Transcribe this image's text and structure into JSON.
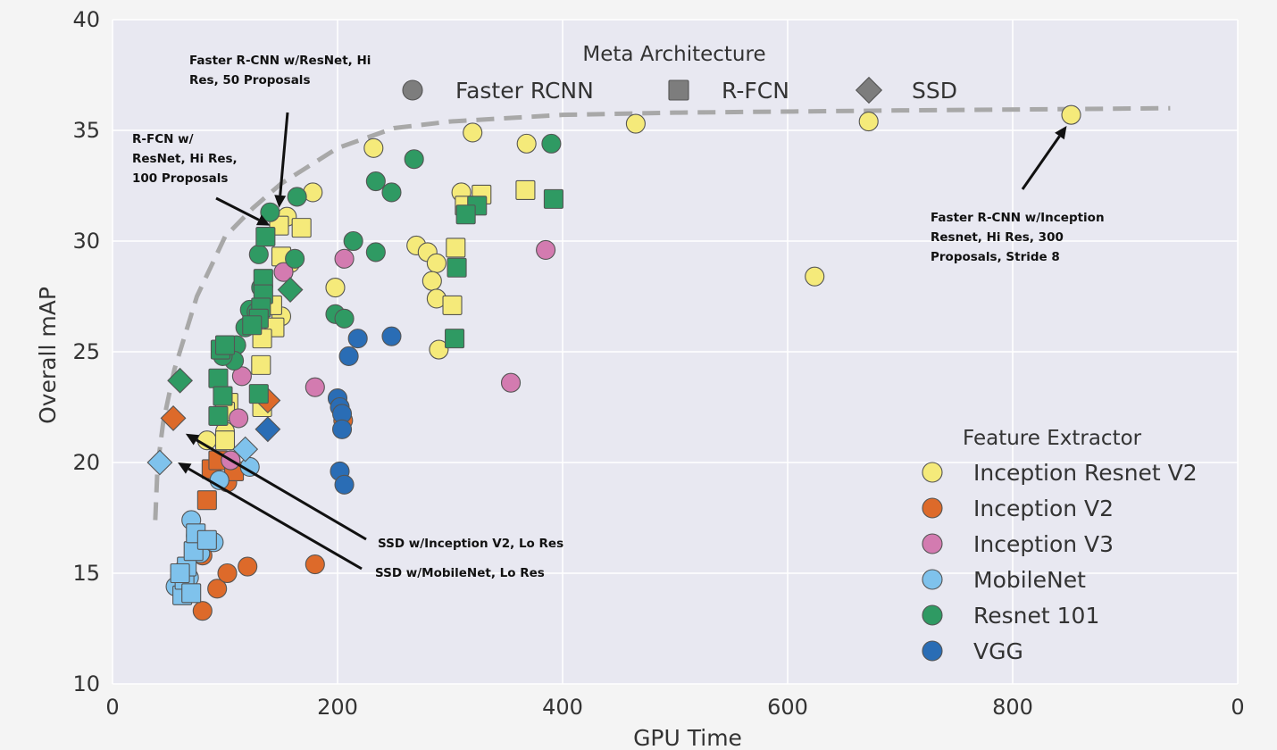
{
  "chart_data": {
    "type": "scatter",
    "xlabel": "GPU Time",
    "ylabel": "Overall mAP",
    "xlim": [
      0,
      1000
    ],
    "ylim": [
      10,
      40
    ],
    "x_ticks": [
      "0",
      "200",
      "400",
      "600",
      "800",
      "0"
    ],
    "y_ticks": [
      "10",
      "15",
      "20",
      "25",
      "30",
      "35",
      "40"
    ],
    "grid": true,
    "meta_legend": {
      "title": "Meta Architecture",
      "placement": "top-center",
      "items": [
        {
          "label": "Faster RCNN",
          "marker": "circle"
        },
        {
          "label": "R-FCN",
          "marker": "square"
        },
        {
          "label": "SSD",
          "marker": "diamond"
        }
      ]
    },
    "feature_legend": {
      "title": "Feature Extractor",
      "placement": "bottom-right",
      "items": [
        {
          "label": "Inception Resnet V2",
          "color": "#f5ea7a"
        },
        {
          "label": "Inception V2",
          "color": "#dd6a2a"
        },
        {
          "label": "Inception V3",
          "color": "#d37bb0"
        },
        {
          "label": "MobileNet",
          "color": "#7fc2ec"
        },
        {
          "label": "Resnet 101",
          "color": "#2f9a63"
        },
        {
          "label": "VGG",
          "color": "#2a6db5"
        }
      ]
    },
    "frontier": {
      "style": "dashed",
      "color": "#a8a8a8",
      "points": [
        [
          38,
          17.4
        ],
        [
          40,
          19.8
        ],
        [
          45,
          21.8
        ],
        [
          55,
          24.2
        ],
        [
          75,
          27.5
        ],
        [
          100,
          30.2
        ],
        [
          125,
          31.5
        ],
        [
          150,
          32.6
        ],
        [
          200,
          34.2
        ],
        [
          250,
          35.1
        ],
        [
          300,
          35.4
        ],
        [
          400,
          35.7
        ],
        [
          500,
          35.8
        ],
        [
          700,
          35.9
        ],
        [
          940,
          36
        ]
      ]
    },
    "annotations": [
      {
        "lines": [
          "Faster R-CNN w/ResNet, Hi",
          "Res, 50 Proposals"
        ],
        "target": [
          148,
          31.5
        ]
      },
      {
        "lines": [
          "R-FCN w/",
          "ResNet, Hi Res,",
          "100 Proposals"
        ],
        "target": [
          140,
          30.7
        ]
      },
      {
        "lines": [
          "Faster R-CNN w/Inception",
          "Resnet, Hi Res, 300",
          "Proposals, Stride 8"
        ],
        "target": [
          848,
          35.2
        ]
      },
      {
        "lines": [
          "SSD w/Inception V2, Lo Res"
        ],
        "target": [
          65,
          21.3
        ]
      },
      {
        "lines": [
          "SSD w/MobileNet, Lo Res"
        ],
        "target": [
          58,
          20
        ]
      }
    ],
    "series": [
      {
        "name": "Inception Resnet V2",
        "color": "#f5ea7a",
        "points": [
          {
            "x": 852,
            "y": 35.7,
            "m": "circle"
          },
          {
            "x": 672,
            "y": 35.4,
            "m": "circle"
          },
          {
            "x": 465,
            "y": 35.3,
            "m": "circle"
          },
          {
            "x": 624,
            "y": 28.4,
            "m": "circle"
          },
          {
            "x": 320,
            "y": 34.9,
            "m": "circle"
          },
          {
            "x": 368,
            "y": 34.4,
            "m": "circle"
          },
          {
            "x": 232,
            "y": 34.2,
            "m": "circle"
          },
          {
            "x": 178,
            "y": 32.2,
            "m": "circle"
          },
          {
            "x": 310,
            "y": 32.2,
            "m": "circle"
          },
          {
            "x": 270,
            "y": 29.8,
            "m": "circle"
          },
          {
            "x": 280,
            "y": 29.5,
            "m": "circle"
          },
          {
            "x": 288,
            "y": 29.0,
            "m": "circle"
          },
          {
            "x": 284,
            "y": 28.2,
            "m": "circle"
          },
          {
            "x": 288,
            "y": 27.4,
            "m": "circle"
          },
          {
            "x": 198,
            "y": 27.9,
            "m": "circle"
          },
          {
            "x": 290,
            "y": 25.1,
            "m": "circle"
          },
          {
            "x": 158,
            "y": 29.0,
            "m": "circle"
          },
          {
            "x": 150,
            "y": 26.6,
            "m": "circle"
          },
          {
            "x": 155,
            "y": 31.1,
            "m": "circle"
          },
          {
            "x": 100,
            "y": 21.4,
            "m": "circle"
          },
          {
            "x": 84,
            "y": 21.0,
            "m": "circle"
          },
          {
            "x": 367,
            "y": 32.3,
            "m": "square"
          },
          {
            "x": 328,
            "y": 32.1,
            "m": "square"
          },
          {
            "x": 313,
            "y": 31.6,
            "m": "square"
          },
          {
            "x": 305,
            "y": 29.7,
            "m": "square"
          },
          {
            "x": 302,
            "y": 27.1,
            "m": "square"
          },
          {
            "x": 148,
            "y": 30.7,
            "m": "square"
          },
          {
            "x": 168,
            "y": 30.6,
            "m": "square"
          },
          {
            "x": 150,
            "y": 29.3,
            "m": "square"
          },
          {
            "x": 142,
            "y": 27.1,
            "m": "square"
          },
          {
            "x": 144,
            "y": 26.1,
            "m": "square"
          },
          {
            "x": 133,
            "y": 25.6,
            "m": "square"
          },
          {
            "x": 132,
            "y": 24.4,
            "m": "square"
          },
          {
            "x": 103,
            "y": 22.7,
            "m": "square"
          },
          {
            "x": 100,
            "y": 22.3,
            "m": "square"
          },
          {
            "x": 133,
            "y": 22.5,
            "m": "square"
          },
          {
            "x": 100,
            "y": 21.0,
            "m": "square"
          }
        ]
      },
      {
        "name": "Inception V2",
        "color": "#dd6a2a",
        "points": [
          {
            "x": 80,
            "y": 13.3,
            "m": "circle"
          },
          {
            "x": 93,
            "y": 14.3,
            "m": "circle"
          },
          {
            "x": 102,
            "y": 15.0,
            "m": "circle"
          },
          {
            "x": 120,
            "y": 15.3,
            "m": "circle"
          },
          {
            "x": 180,
            "y": 15.4,
            "m": "circle"
          },
          {
            "x": 205,
            "y": 21.9,
            "m": "circle"
          },
          {
            "x": 102,
            "y": 19.1,
            "m": "circle"
          },
          {
            "x": 80,
            "y": 15.8,
            "m": "circle"
          },
          {
            "x": 84,
            "y": 18.3,
            "m": "square"
          },
          {
            "x": 88,
            "y": 19.7,
            "m": "square"
          },
          {
            "x": 94,
            "y": 20.1,
            "m": "square"
          },
          {
            "x": 108,
            "y": 19.6,
            "m": "square"
          },
          {
            "x": 54,
            "y": 22.0,
            "m": "diamond"
          },
          {
            "x": 138,
            "y": 22.8,
            "m": "diamond"
          }
        ]
      },
      {
        "name": "Inception V3",
        "color": "#d37bb0",
        "points": [
          {
            "x": 206,
            "y": 29.2,
            "m": "circle"
          },
          {
            "x": 385,
            "y": 29.6,
            "m": "circle"
          },
          {
            "x": 180,
            "y": 23.4,
            "m": "circle"
          },
          {
            "x": 354,
            "y": 23.6,
            "m": "circle"
          },
          {
            "x": 115,
            "y": 23.9,
            "m": "circle"
          },
          {
            "x": 152,
            "y": 28.6,
            "m": "circle"
          },
          {
            "x": 112,
            "y": 22.0,
            "m": "circle"
          },
          {
            "x": 105,
            "y": 20.1,
            "m": "circle"
          }
        ]
      },
      {
        "name": "MobileNet",
        "color": "#7fc2ec",
        "points": [
          {
            "x": 56,
            "y": 14.4,
            "m": "circle"
          },
          {
            "x": 62,
            "y": 15.1,
            "m": "circle"
          },
          {
            "x": 70,
            "y": 17.4,
            "m": "circle"
          },
          {
            "x": 74,
            "y": 16.7,
            "m": "circle"
          },
          {
            "x": 78,
            "y": 15.9,
            "m": "circle"
          },
          {
            "x": 90,
            "y": 16.4,
            "m": "circle"
          },
          {
            "x": 95,
            "y": 19.2,
            "m": "circle"
          },
          {
            "x": 122,
            "y": 19.8,
            "m": "circle"
          },
          {
            "x": 68,
            "y": 14.8,
            "m": "circle"
          },
          {
            "x": 62,
            "y": 14.0,
            "m": "square"
          },
          {
            "x": 64,
            "y": 14.7,
            "m": "square"
          },
          {
            "x": 66,
            "y": 15.3,
            "m": "square"
          },
          {
            "x": 70,
            "y": 14.1,
            "m": "square"
          },
          {
            "x": 72,
            "y": 16.0,
            "m": "square"
          },
          {
            "x": 74,
            "y": 16.8,
            "m": "square"
          },
          {
            "x": 84,
            "y": 16.5,
            "m": "square"
          },
          {
            "x": 60,
            "y": 15.0,
            "m": "square"
          },
          {
            "x": 42,
            "y": 20.0,
            "m": "diamond"
          },
          {
            "x": 118,
            "y": 20.6,
            "m": "diamond"
          }
        ]
      },
      {
        "name": "Resnet 101",
        "color": "#2f9a63",
        "points": [
          {
            "x": 390,
            "y": 34.4,
            "m": "circle"
          },
          {
            "x": 268,
            "y": 33.7,
            "m": "circle"
          },
          {
            "x": 234,
            "y": 32.7,
            "m": "circle"
          },
          {
            "x": 248,
            "y": 32.2,
            "m": "circle"
          },
          {
            "x": 164,
            "y": 32.0,
            "m": "circle"
          },
          {
            "x": 140,
            "y": 31.3,
            "m": "circle"
          },
          {
            "x": 214,
            "y": 30.0,
            "m": "circle"
          },
          {
            "x": 234,
            "y": 29.5,
            "m": "circle"
          },
          {
            "x": 130,
            "y": 29.4,
            "m": "circle"
          },
          {
            "x": 198,
            "y": 26.7,
            "m": "circle"
          },
          {
            "x": 206,
            "y": 26.5,
            "m": "circle"
          },
          {
            "x": 132,
            "y": 27.9,
            "m": "circle"
          },
          {
            "x": 118,
            "y": 26.1,
            "m": "circle"
          },
          {
            "x": 122,
            "y": 26.9,
            "m": "circle"
          },
          {
            "x": 110,
            "y": 25.3,
            "m": "circle"
          },
          {
            "x": 108,
            "y": 24.6,
            "m": "circle"
          },
          {
            "x": 162,
            "y": 29.2,
            "m": "circle"
          },
          {
            "x": 98,
            "y": 24.8,
            "m": "circle"
          },
          {
            "x": 128,
            "y": 26.8,
            "m": "circle"
          },
          {
            "x": 392,
            "y": 31.9,
            "m": "square"
          },
          {
            "x": 324,
            "y": 31.6,
            "m": "square"
          },
          {
            "x": 314,
            "y": 31.2,
            "m": "square"
          },
          {
            "x": 306,
            "y": 28.8,
            "m": "square"
          },
          {
            "x": 304,
            "y": 25.6,
            "m": "square"
          },
          {
            "x": 136,
            "y": 30.2,
            "m": "square"
          },
          {
            "x": 134,
            "y": 28.3,
            "m": "square"
          },
          {
            "x": 134,
            "y": 27.6,
            "m": "square"
          },
          {
            "x": 132,
            "y": 27.0,
            "m": "square"
          },
          {
            "x": 130,
            "y": 26.5,
            "m": "square"
          },
          {
            "x": 124,
            "y": 26.2,
            "m": "square"
          },
          {
            "x": 96,
            "y": 25.1,
            "m": "square"
          },
          {
            "x": 100,
            "y": 25.3,
            "m": "square"
          },
          {
            "x": 94,
            "y": 23.8,
            "m": "square"
          },
          {
            "x": 130,
            "y": 23.1,
            "m": "square"
          },
          {
            "x": 94,
            "y": 22.1,
            "m": "square"
          },
          {
            "x": 98,
            "y": 23.0,
            "m": "square"
          },
          {
            "x": 60,
            "y": 23.7,
            "m": "diamond"
          },
          {
            "x": 158,
            "y": 27.8,
            "m": "diamond"
          }
        ]
      },
      {
        "name": "VGG",
        "color": "#2a6db5",
        "points": [
          {
            "x": 248,
            "y": 25.7,
            "m": "circle"
          },
          {
            "x": 218,
            "y": 25.6,
            "m": "circle"
          },
          {
            "x": 210,
            "y": 24.8,
            "m": "circle"
          },
          {
            "x": 200,
            "y": 22.9,
            "m": "circle"
          },
          {
            "x": 202,
            "y": 22.5,
            "m": "circle"
          },
          {
            "x": 204,
            "y": 22.2,
            "m": "circle"
          },
          {
            "x": 204,
            "y": 21.5,
            "m": "circle"
          },
          {
            "x": 202,
            "y": 19.6,
            "m": "circle"
          },
          {
            "x": 206,
            "y": 19.0,
            "m": "circle"
          },
          {
            "x": 138,
            "y": 21.5,
            "m": "diamond"
          }
        ]
      }
    ]
  }
}
